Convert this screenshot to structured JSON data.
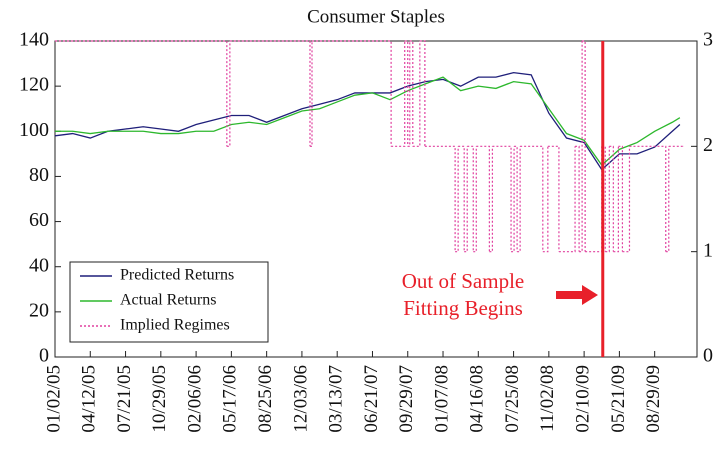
{
  "chart_data": {
    "type": "line",
    "title": "Consumer Staples",
    "xlim": [
      0,
      1274
    ],
    "xticks": [
      {
        "value": 0,
        "label": "01/02/05"
      },
      {
        "value": 70,
        "label": "04/12/05"
      },
      {
        "value": 140,
        "label": "07/21/05"
      },
      {
        "value": 210,
        "label": "10/29/05"
      },
      {
        "value": 280,
        "label": "02/06/06"
      },
      {
        "value": 350,
        "label": "05/17/06"
      },
      {
        "value": 420,
        "label": "08/25/06"
      },
      {
        "value": 490,
        "label": "12/03/06"
      },
      {
        "value": 560,
        "label": "03/13/07"
      },
      {
        "value": 630,
        "label": "06/21/07"
      },
      {
        "value": 700,
        "label": "09/29/07"
      },
      {
        "value": 770,
        "label": "01/07/08"
      },
      {
        "value": 840,
        "label": "04/16/08"
      },
      {
        "value": 910,
        "label": "07/25/08"
      },
      {
        "value": 980,
        "label": "11/02/08"
      },
      {
        "value": 1050,
        "label": "02/10/09"
      },
      {
        "value": 1120,
        "label": "05/21/09"
      },
      {
        "value": 1190,
        "label": "08/29/09"
      }
    ],
    "ylim": [
      0,
      140
    ],
    "yticks": [
      0,
      20,
      40,
      60,
      80,
      100,
      120,
      140
    ],
    "y2lim": [
      0,
      3
    ],
    "y2ticks": [
      0,
      1,
      2,
      3
    ],
    "x": [
      0,
      35,
      70,
      105,
      140,
      175,
      210,
      245,
      280,
      315,
      350,
      385,
      420,
      455,
      490,
      525,
      560,
      595,
      630,
      665,
      700,
      735,
      770,
      805,
      840,
      875,
      910,
      945,
      980,
      1015,
      1050,
      1085,
      1120,
      1155,
      1190,
      1225,
      1240
    ],
    "series": [
      {
        "name": "Predicted Returns",
        "color": "#1f1f7a",
        "values": [
          98,
          99,
          97,
          100,
          101,
          102,
          101,
          100,
          103,
          105,
          107,
          107,
          104,
          107,
          110,
          112,
          114,
          117,
          117,
          117,
          120,
          122,
          123,
          120,
          124,
          124,
          126,
          125,
          108,
          97,
          95,
          83,
          90,
          90,
          93,
          100,
          103
        ]
      },
      {
        "name": "Actual Returns",
        "color": "#2db82d",
        "values": [
          100,
          100,
          99,
          100,
          100,
          100,
          99,
          99,
          100,
          100,
          103,
          104,
          103,
          106,
          109,
          110,
          113,
          116,
          117,
          114,
          118,
          121,
          124,
          118,
          120,
          119,
          122,
          121,
          110,
          99,
          96,
          85,
          92,
          95,
          100,
          104,
          106
        ]
      },
      {
        "name": "Implied Regimes",
        "color": "#e0409f",
        "axis": "y2",
        "dashed": true,
        "x": [
          0,
          341,
          347,
          506,
          510,
          667,
          694,
          700,
          704,
          710,
          724,
          734,
          794,
          800,
          812,
          818,
          830,
          836,
          862,
          868,
          905,
          911,
          917,
          923,
          968,
          978,
          1000,
          1032,
          1040,
          1046,
          1052,
          1085,
          1092,
          1100,
          1108,
          1118,
          1126,
          1140,
          1212,
          1218,
          1247
        ],
        "values": [
          3,
          2,
          3,
          2,
          3,
          2,
          3,
          2,
          3,
          2,
          3,
          2,
          1,
          2,
          1,
          2,
          1,
          2,
          1,
          2,
          1,
          2,
          1,
          2,
          1,
          2,
          1,
          2,
          1,
          3,
          1,
          2,
          1,
          2,
          1,
          2,
          1,
          2,
          1,
          2,
          2
        ]
      }
    ],
    "legend": "lower left",
    "marker_x": 1087,
    "marker_color": "#e8202a",
    "annotation": [
      "Out of Sample",
      "Fitting Begins"
    ]
  }
}
